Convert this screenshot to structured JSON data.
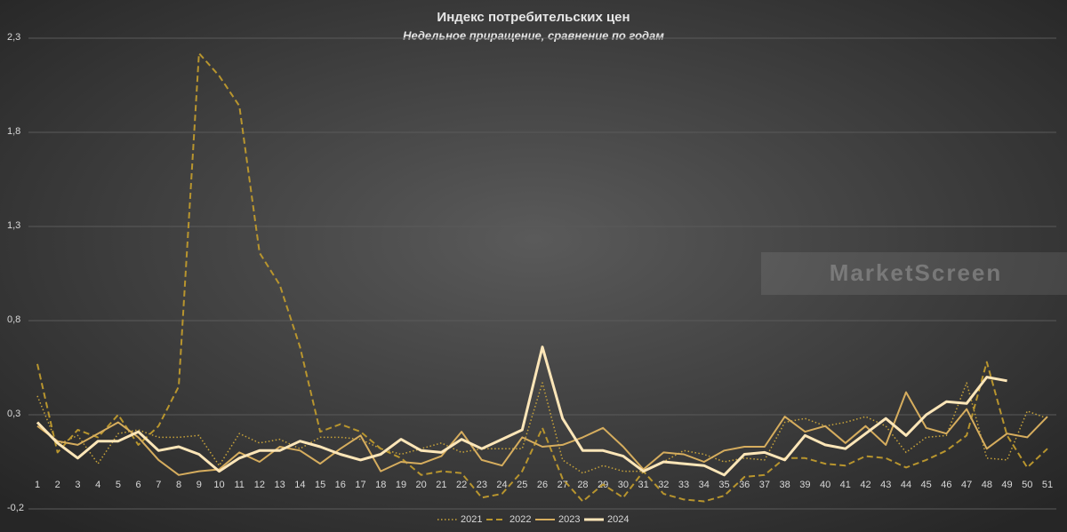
{
  "chart_data": {
    "type": "line",
    "title": "Индекс потребительских цен",
    "subtitle": "Недельное приращение, сравнение по годам",
    "watermark": "MarketScreen",
    "categories": [
      1,
      2,
      3,
      4,
      5,
      6,
      7,
      8,
      9,
      10,
      11,
      12,
      13,
      14,
      15,
      16,
      17,
      18,
      19,
      20,
      21,
      22,
      23,
      24,
      25,
      26,
      27,
      28,
      29,
      30,
      31,
      32,
      33,
      34,
      35,
      36,
      37,
      38,
      39,
      40,
      41,
      42,
      43,
      44,
      45,
      46,
      47,
      48,
      49,
      50,
      51
    ],
    "ylim": [
      -0.2,
      2.3
    ],
    "yticks": [
      {
        "value": -0.2,
        "label": "-0,2"
      },
      {
        "value": 0.3,
        "label": "0,3"
      },
      {
        "value": 0.8,
        "label": "0,8"
      },
      {
        "value": 1.3,
        "label": "1,3"
      },
      {
        "value": 1.8,
        "label": "1,8"
      },
      {
        "value": 2.3,
        "label": "2,3"
      }
    ],
    "grid": true,
    "legend": "bottom",
    "series": [
      {
        "name": "2021",
        "color": "#c9a43a",
        "style": "dotted",
        "values": [
          0.4,
          0.14,
          0.19,
          0.04,
          0.2,
          0.22,
          0.18,
          0.18,
          0.19,
          0.03,
          0.2,
          0.15,
          0.17,
          0.12,
          0.18,
          0.18,
          0.17,
          0.12,
          0.09,
          0.12,
          0.15,
          0.1,
          0.12,
          0.12,
          0.12,
          0.47,
          0.06,
          -0.01,
          0.03,
          0.0,
          0.0,
          0.05,
          0.11,
          0.09,
          0.05,
          0.07,
          0.06,
          0.26,
          0.28,
          0.24,
          0.26,
          0.29,
          0.24,
          0.1,
          0.18,
          0.19,
          0.47,
          0.07,
          0.06,
          0.32,
          0.28
        ]
      },
      {
        "name": "2022",
        "color": "#b8952e",
        "style": "dashed",
        "values": [
          0.57,
          0.1,
          0.22,
          0.18,
          0.3,
          0.14,
          0.24,
          0.45,
          2.22,
          2.1,
          1.94,
          1.16,
          0.99,
          0.66,
          0.21,
          0.25,
          0.21,
          0.12,
          0.07,
          -0.02,
          0.0,
          -0.01,
          -0.14,
          -0.12,
          0.0,
          0.23,
          -0.04,
          -0.16,
          -0.07,
          -0.14,
          0.0,
          -0.12,
          -0.15,
          -0.16,
          -0.13,
          -0.03,
          -0.02,
          0.07,
          0.07,
          0.04,
          0.03,
          0.08,
          0.07,
          0.02,
          0.06,
          0.11,
          0.19,
          0.58,
          0.19,
          0.02,
          0.12
        ]
      },
      {
        "name": "2023",
        "color": "#d6ad5e",
        "style": "solid",
        "values": [
          0.24,
          0.16,
          0.14,
          0.2,
          0.26,
          0.18,
          0.06,
          -0.02,
          0.0,
          0.01,
          0.1,
          0.05,
          0.13,
          0.11,
          0.04,
          0.12,
          0.19,
          0.0,
          0.05,
          0.04,
          0.08,
          0.21,
          0.06,
          0.03,
          0.18,
          0.13,
          0.14,
          0.18,
          0.23,
          0.13,
          0.01,
          0.1,
          0.09,
          0.05,
          0.11,
          0.13,
          0.13,
          0.29,
          0.21,
          0.24,
          0.15,
          0.24,
          0.14,
          0.42,
          0.23,
          0.2,
          0.33,
          0.12,
          0.2,
          0.18,
          0.29
        ]
      },
      {
        "name": "2024",
        "color": "#fde6b8",
        "style": "bold",
        "values": [
          0.26,
          0.15,
          0.07,
          0.16,
          0.16,
          0.21,
          0.11,
          0.13,
          0.09,
          0.0,
          0.07,
          0.11,
          0.11,
          0.16,
          0.13,
          0.09,
          0.06,
          0.09,
          0.17,
          0.11,
          0.1,
          0.17,
          0.12,
          0.17,
          0.22,
          0.66,
          0.28,
          0.11,
          0.11,
          0.08,
          0.0,
          0.05,
          0.04,
          0.03,
          -0.02,
          0.09,
          0.1,
          0.06,
          0.19,
          0.14,
          0.12,
          0.2,
          0.28,
          0.19,
          0.3,
          0.37,
          0.36,
          0.5,
          0.48,
          null,
          null
        ]
      }
    ]
  }
}
